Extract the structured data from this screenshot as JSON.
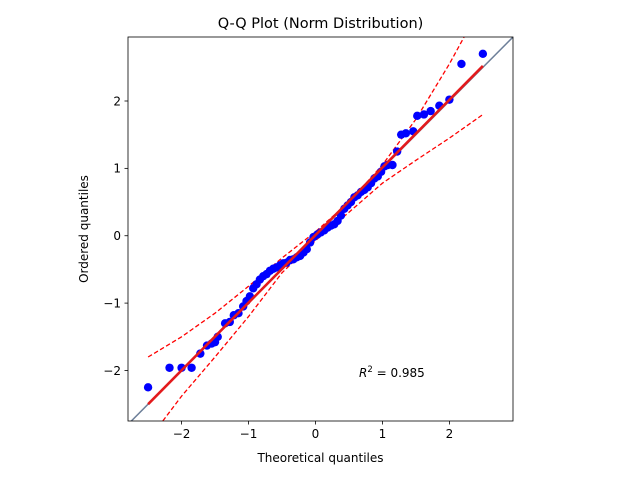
{
  "chart_data": {
    "type": "scatter",
    "title": "Q-Q Plot (Norm Distribution)",
    "xlabel": "Theoretical quantiles",
    "ylabel": "Ordered quantiles",
    "xlim": [
      -2.8,
      2.95
    ],
    "ylim": [
      -2.75,
      2.95
    ],
    "xticks": [
      {
        "value": -2,
        "label": "−2"
      },
      {
        "value": -1,
        "label": "−1"
      },
      {
        "value": 0,
        "label": "0"
      },
      {
        "value": 1,
        "label": "1"
      },
      {
        "value": 2,
        "label": "2"
      }
    ],
    "yticks": [
      {
        "value": -2,
        "label": "−2"
      },
      {
        "value": -1,
        "label": "−1"
      },
      {
        "value": 0,
        "label": "0"
      },
      {
        "value": 1,
        "label": "1"
      },
      {
        "value": 2,
        "label": "2"
      }
    ],
    "grid": false,
    "annotation": {
      "prefix": "R",
      "sup": "2",
      "suffix": " = 0.985",
      "x": 0.65,
      "y": -2.1
    },
    "reference_line": {
      "slope": 1,
      "intercept": 0,
      "color": "#6d7f99"
    },
    "fit_line": {
      "x": [
        -2.5,
        2.5
      ],
      "y": [
        -2.5,
        2.52
      ],
      "color": "#e31a1c"
    },
    "confidence_band": {
      "color": "#ff0000",
      "upper": {
        "x": [
          -2.5,
          -2.0,
          -1.5,
          -1.0,
          -0.5,
          0.0,
          0.5,
          1.0,
          1.5,
          2.0,
          2.22
        ],
        "y": [
          -1.8,
          -1.5,
          -1.15,
          -0.75,
          -0.33,
          0.06,
          0.5,
          1.05,
          1.73,
          2.55,
          2.95
        ]
      },
      "lower": {
        "x": [
          -2.28,
          -2.0,
          -1.5,
          -1.0,
          -0.5,
          0.0,
          0.5,
          1.0,
          1.5,
          2.0,
          2.5
        ],
        "y": [
          -2.75,
          -2.38,
          -1.8,
          -1.2,
          -0.55,
          -0.07,
          0.35,
          0.78,
          1.12,
          1.45,
          1.8
        ]
      }
    },
    "series": [
      {
        "color": "#0000ff",
        "x": [
          -2.5,
          -2.18,
          -2.0,
          -1.85,
          -1.72,
          -1.62,
          -1.55,
          -1.5,
          -1.46,
          -1.35,
          -1.28,
          -1.22,
          -1.15,
          -1.08,
          -1.03,
          -0.98,
          -0.93,
          -0.88,
          -0.83,
          -0.78,
          -0.73,
          -0.68,
          -0.63,
          -0.58,
          -0.53,
          -0.48,
          -0.43,
          -0.38,
          -0.33,
          -0.28,
          -0.23,
          -0.18,
          -0.13,
          -0.08,
          -0.03,
          0.03,
          0.08,
          0.13,
          0.18,
          0.23,
          0.28,
          0.33,
          0.38,
          0.43,
          0.48,
          0.53,
          0.58,
          0.63,
          0.68,
          0.73,
          0.78,
          0.83,
          0.88,
          0.93,
          0.98,
          1.03,
          1.08,
          1.15,
          1.22,
          1.28,
          1.35,
          1.46,
          1.52,
          1.62,
          1.72,
          1.85,
          2.0,
          2.18,
          2.5
        ],
        "y": [
          -2.25,
          -1.96,
          -1.96,
          -1.96,
          -1.75,
          -1.63,
          -1.6,
          -1.58,
          -1.5,
          -1.3,
          -1.28,
          -1.18,
          -1.15,
          -1.05,
          -0.97,
          -0.9,
          -0.78,
          -0.72,
          -0.65,
          -0.6,
          -0.57,
          -0.52,
          -0.49,
          -0.47,
          -0.44,
          -0.41,
          -0.4,
          -0.36,
          -0.35,
          -0.32,
          -0.3,
          -0.25,
          -0.2,
          -0.1,
          -0.02,
          0.02,
          0.05,
          0.08,
          0.12,
          0.15,
          0.17,
          0.22,
          0.3,
          0.4,
          0.45,
          0.5,
          0.57,
          0.6,
          0.65,
          0.68,
          0.72,
          0.78,
          0.85,
          0.88,
          0.95,
          1.03,
          1.05,
          1.05,
          1.25,
          1.5,
          1.52,
          1.55,
          1.78,
          1.8,
          1.85,
          1.93,
          2.02,
          2.55,
          2.7
        ]
      }
    ]
  }
}
